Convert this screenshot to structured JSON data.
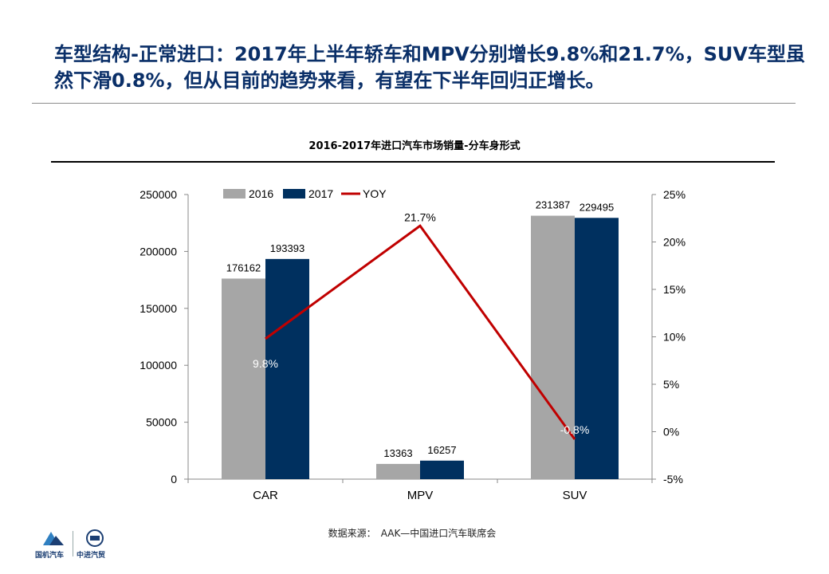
{
  "slide_title": "车型结构-正常进口：2017年上半年轿车和MPV分别增长9.8%和21.7%，SUV车型虽然下滑0.8%，但从目前的趋势来看，有望在下半年回归正增长。",
  "source_label": "数据来源：",
  "source_value": "AAK—中国进口汽车联席会",
  "logos": {
    "left_text": "国机汽车",
    "right_text": "中进汽贸"
  },
  "colors": {
    "series_2016": "#a6a6a6",
    "series_2017": "#00305f",
    "series_yoy": "#c00000",
    "title": "#0a2f68"
  },
  "chart_data": {
    "type": "bar",
    "title": "2016-2017年进口汽车市场销量-分车身形式",
    "categories": [
      "CAR",
      "MPV",
      "SUV"
    ],
    "series": [
      {
        "name": "2016",
        "type": "bar",
        "axis": "left",
        "values": [
          176162,
          13363,
          231387
        ],
        "labels": [
          "176162",
          "13363",
          "231387"
        ]
      },
      {
        "name": "2017",
        "type": "bar",
        "axis": "left",
        "values": [
          193393,
          16257,
          229495
        ],
        "labels": [
          "193393",
          "16257",
          "229495"
        ]
      },
      {
        "name": "YOY",
        "type": "line",
        "axis": "right",
        "values": [
          9.8,
          21.7,
          -0.8
        ],
        "labels": [
          "9.8%",
          "21.7%",
          "-0.8%"
        ]
      }
    ],
    "y_left": {
      "min": 0,
      "max": 250000,
      "ticks": [
        "0",
        "50000",
        "100000",
        "150000",
        "200000",
        "250000"
      ]
    },
    "y_right": {
      "min": -5,
      "max": 25,
      "ticks": [
        "-5%",
        "0%",
        "5%",
        "10%",
        "15%",
        "20%",
        "25%"
      ]
    },
    "legend_position": "top-left",
    "grid": false
  }
}
